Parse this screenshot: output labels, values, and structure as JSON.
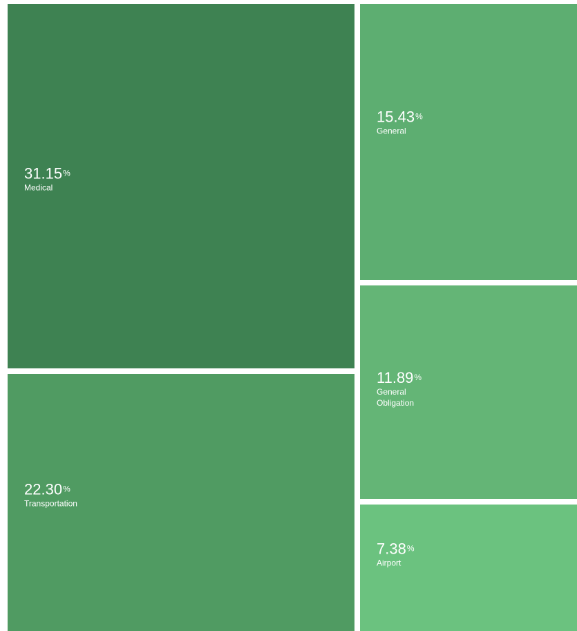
{
  "chart_data": {
    "type": "treemap",
    "unit": "%",
    "items": [
      {
        "label": "Medical",
        "value": 31.15,
        "display": "31.15",
        "color": "#3e8252"
      },
      {
        "label": "Transportation",
        "value": 22.3,
        "display": "22.30",
        "color": "#509b62"
      },
      {
        "label": "General",
        "value": 15.43,
        "display": "15.43",
        "color": "#5dae71"
      },
      {
        "label": "General Obligation",
        "value": 11.89,
        "display": "11.89",
        "color": "#64b576"
      },
      {
        "label": "Airport",
        "value": 7.38,
        "display": "7.38",
        "color": "#6bc27f"
      }
    ]
  }
}
